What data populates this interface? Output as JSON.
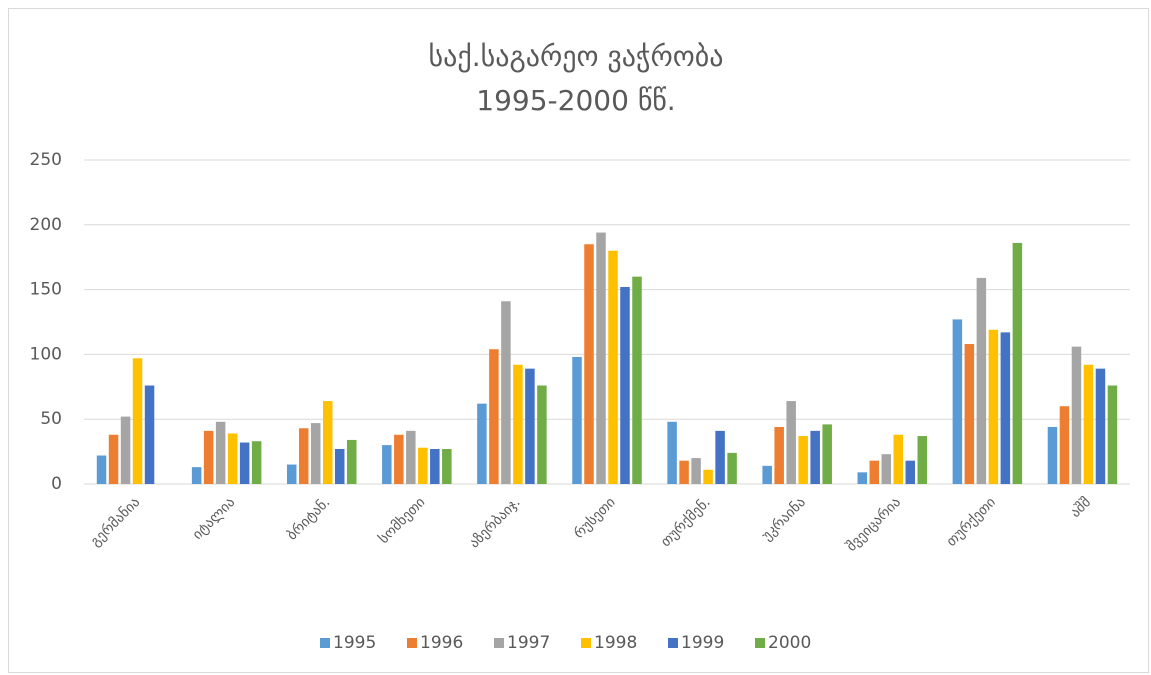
{
  "chart_data": {
    "type": "bar",
    "title": [
      "საქ.საგარეო ვაჭრობა",
      "1995-2000 წწ."
    ],
    "categories": [
      "გერმანია",
      "იტალია",
      "ბრიტან.",
      "სომხეთი",
      "აზერბაიჯ.",
      "რუსეთი",
      "თურქმენ.",
      "უკრაინა",
      "შვეიცარია",
      "თურქეთი",
      "აშშ"
    ],
    "series": [
      {
        "name": "1995",
        "color": "#5b9bd5",
        "values": [
          22,
          13,
          15,
          30,
          62,
          98,
          48,
          14,
          9,
          127,
          44
        ]
      },
      {
        "name": "1996",
        "color": "#ed7d31",
        "values": [
          38,
          41,
          43,
          38,
          104,
          185,
          18,
          44,
          18,
          108,
          60
        ]
      },
      {
        "name": "1997",
        "color": "#a5a5a5",
        "values": [
          52,
          48,
          47,
          41,
          141,
          194,
          20,
          64,
          23,
          159,
          106
        ]
      },
      {
        "name": "1998",
        "color": "#ffc000",
        "values": [
          97,
          39,
          64,
          28,
          92,
          180,
          11,
          37,
          38,
          119,
          92
        ]
      },
      {
        "name": "1999",
        "color": "#4472c4",
        "values": [
          76,
          32,
          27,
          27,
          89,
          152,
          41,
          41,
          18,
          117,
          89
        ]
      },
      {
        "name": "2000",
        "color": "#70ad47",
        "values": [
          null,
          33,
          34,
          27,
          76,
          160,
          24,
          46,
          37,
          186,
          76
        ]
      }
    ],
    "ylim": [
      0,
      250
    ],
    "yticks": [
      0,
      50,
      100,
      150,
      200,
      250
    ],
    "grid": true,
    "legend": "bottom"
  }
}
